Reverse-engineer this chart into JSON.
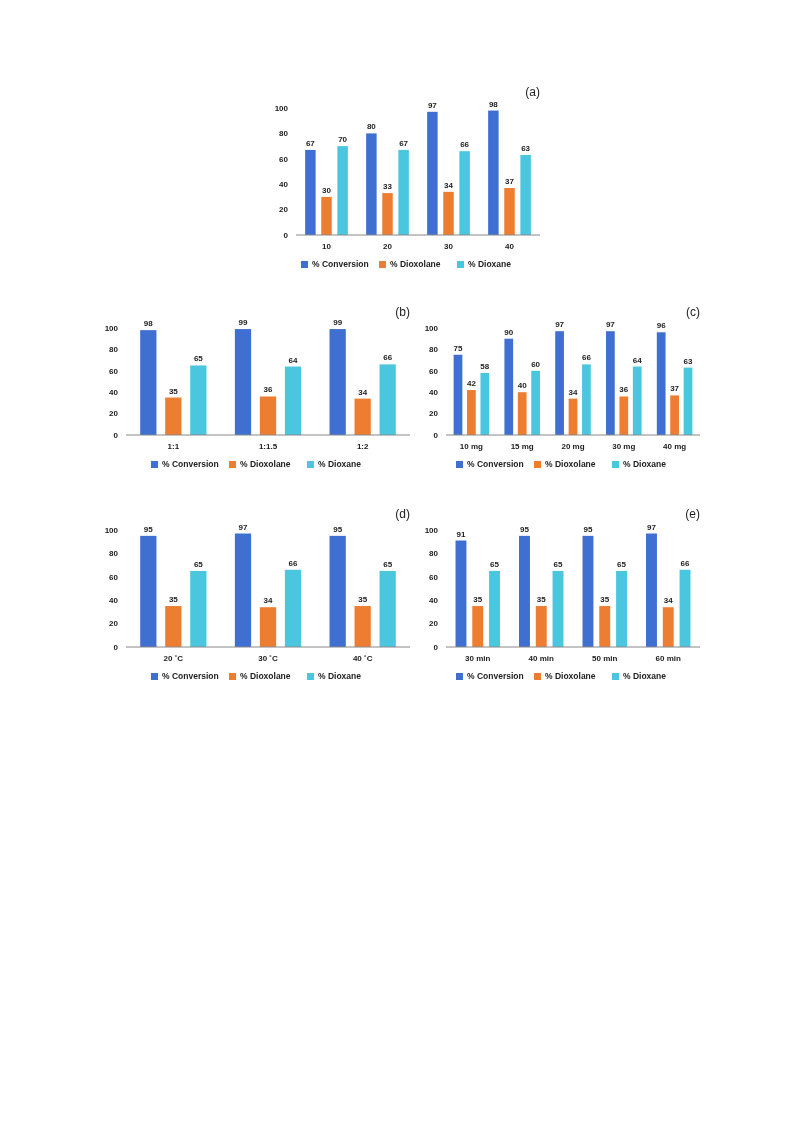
{
  "chart_data": [
    {
      "type": "bar",
      "title": "(a)",
      "categories": [
        "10",
        "20",
        "30",
        "40"
      ],
      "ylim": [
        0,
        100
      ],
      "yticks": [
        0,
        20,
        40,
        60,
        80,
        100
      ],
      "data_labels": true,
      "legend": "bottom",
      "grid": false,
      "series": [
        {
          "name": "% Conversion",
          "color": "#3f6fd1",
          "values": [
            67,
            80,
            97,
            98
          ]
        },
        {
          "name": "% Dioxolane",
          "color": "#ed7d31",
          "values": [
            30,
            33,
            34,
            37
          ]
        },
        {
          "name": "% Dioxane",
          "color": "#4bc6df",
          "values": [
            70,
            67,
            66,
            63
          ]
        }
      ]
    },
    {
      "type": "bar",
      "title": "(b)",
      "categories": [
        "1:1",
        "1:1.5",
        "1:2"
      ],
      "ylim": [
        0,
        100
      ],
      "yticks": [
        0,
        20,
        40,
        60,
        80,
        100
      ],
      "data_labels": true,
      "legend": "bottom",
      "grid": false,
      "series": [
        {
          "name": "% Conversion",
          "color": "#3f6fd1",
          "values": [
            98,
            99,
            99
          ]
        },
        {
          "name": "% Dioxolane",
          "color": "#ed7d31",
          "values": [
            35,
            36,
            34
          ]
        },
        {
          "name": "% Dioxane",
          "color": "#4bc6df",
          "values": [
            65,
            64,
            66
          ]
        }
      ]
    },
    {
      "type": "bar",
      "title": "(c)",
      "categories": [
        "10 mg",
        "15 mg",
        "20 mg",
        "30 mg",
        "40 mg"
      ],
      "ylim": [
        0,
        100
      ],
      "yticks": [
        0,
        20,
        40,
        60,
        80,
        100
      ],
      "data_labels": true,
      "legend": "bottom",
      "grid": false,
      "series": [
        {
          "name": "% Conversion",
          "color": "#3f6fd1",
          "values": [
            75,
            90,
            97,
            97,
            96
          ]
        },
        {
          "name": "% Dioxolane",
          "color": "#ed7d31",
          "values": [
            42,
            40,
            34,
            36,
            37
          ]
        },
        {
          "name": "% Dioxane",
          "color": "#4bc6df",
          "values": [
            58,
            60,
            66,
            64,
            63
          ]
        }
      ]
    },
    {
      "type": "bar",
      "title": "(d)",
      "categories": [
        "20 ˚C",
        "30 ˚C",
        "40 ˚C"
      ],
      "ylim": [
        0,
        100
      ],
      "yticks": [
        0,
        20,
        40,
        60,
        80,
        100
      ],
      "data_labels": true,
      "legend": "bottom",
      "grid": false,
      "series": [
        {
          "name": "% Conversion",
          "color": "#3f6fd1",
          "values": [
            95,
            97,
            95
          ]
        },
        {
          "name": "% Dioxolane",
          "color": "#ed7d31",
          "values": [
            35,
            34,
            35
          ]
        },
        {
          "name": "% Dioxane",
          "color": "#4bc6df",
          "values": [
            65,
            66,
            65
          ]
        }
      ]
    },
    {
      "type": "bar",
      "title": "(e)",
      "categories": [
        "30 min",
        "40 min",
        "50 min",
        "60 min"
      ],
      "ylim": [
        0,
        100
      ],
      "yticks": [
        0,
        20,
        40,
        60,
        80,
        100
      ],
      "data_labels": true,
      "legend": "bottom",
      "grid": false,
      "series": [
        {
          "name": "% Conversion",
          "color": "#3f6fd1",
          "values": [
            91,
            95,
            95,
            97
          ]
        },
        {
          "name": "% Dioxolane",
          "color": "#ed7d31",
          "values": [
            35,
            35,
            35,
            34
          ]
        },
        {
          "name": "% Dioxane",
          "color": "#4bc6df",
          "values": [
            65,
            65,
            65,
            66
          ]
        }
      ]
    }
  ]
}
